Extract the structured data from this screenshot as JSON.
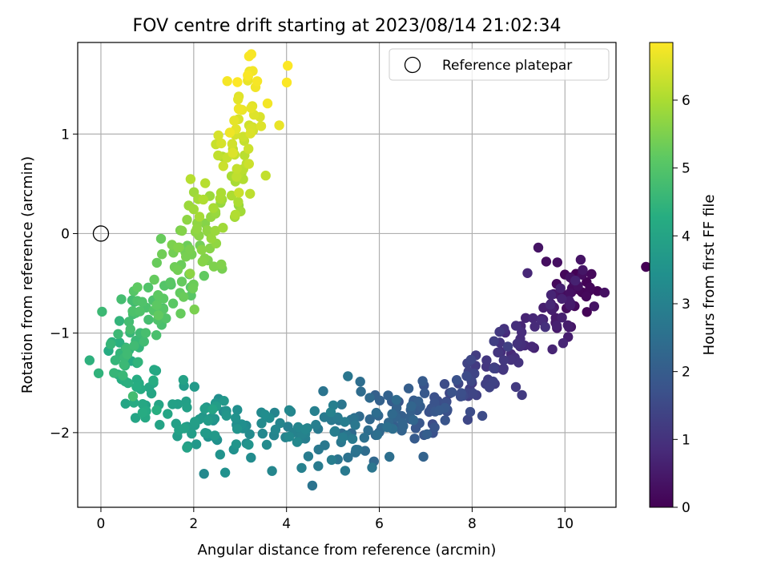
{
  "chart_data": {
    "type": "scatter",
    "title": "FOV centre drift starting at 2023/08/14 21:02:34",
    "xlabel": "Angular distance from reference (arcmin)",
    "ylabel": "Rotation from reference (arcmin)",
    "xlim": [
      -0.5,
      11.1
    ],
    "ylim": [
      -2.75,
      1.92
    ],
    "xticks": [
      0,
      2,
      4,
      6,
      8,
      10
    ],
    "yticks": [
      -2,
      -1,
      0,
      1
    ],
    "grid": true,
    "colorbar": {
      "label": "Hours from first FF file",
      "colormap": "viridis",
      "range": [
        0,
        6.85
      ],
      "ticks": [
        0,
        1,
        2,
        3,
        4,
        5,
        6
      ]
    },
    "legend": {
      "position": "top-right",
      "entries": [
        {
          "label": "Reference platepar",
          "marker": "open-circle"
        }
      ]
    },
    "reference_point": {
      "x": 0,
      "y": 0
    },
    "trend": {
      "description_points": [
        {
          "hours": 0.0,
          "x": 10.5,
          "y": -0.4
        },
        {
          "hours": 0.6,
          "x": 9.8,
          "y": -0.8
        },
        {
          "hours": 1.0,
          "x": 8.7,
          "y": -1.2
        },
        {
          "hours": 1.6,
          "x": 7.6,
          "y": -1.7
        },
        {
          "hours": 2.2,
          "x": 6.3,
          "y": -1.85
        },
        {
          "hours": 2.9,
          "x": 4.8,
          "y": -2.0
        },
        {
          "hours": 3.3,
          "x": 3.3,
          "y": -2.0
        },
        {
          "hours": 3.8,
          "x": 1.9,
          "y": -1.85
        },
        {
          "hours": 4.2,
          "x": 0.8,
          "y": -1.6
        },
        {
          "hours": 4.5,
          "x": 0.35,
          "y": -1.2
        },
        {
          "hours": 4.9,
          "x": 1.0,
          "y": -0.8
        },
        {
          "hours": 5.3,
          "x": 1.8,
          "y": -0.4
        },
        {
          "hours": 5.8,
          "x": 2.4,
          "y": 0.1
        },
        {
          "hours": 6.3,
          "x": 2.9,
          "y": 0.8
        },
        {
          "hours": 6.85,
          "x": 3.3,
          "y": 1.7
        }
      ]
    }
  }
}
